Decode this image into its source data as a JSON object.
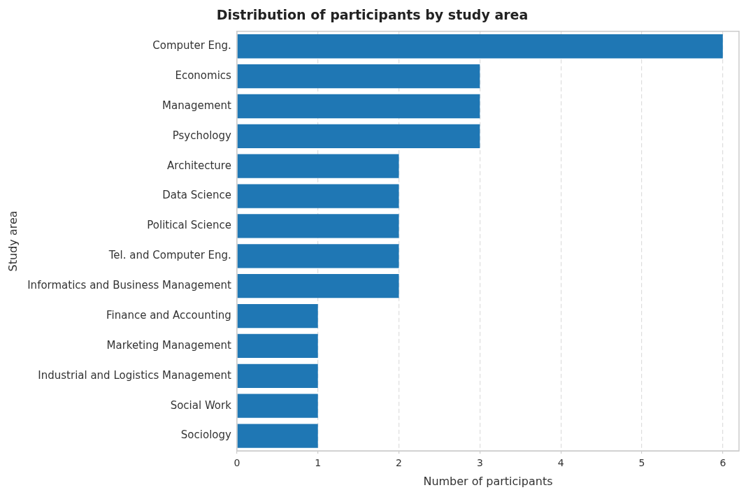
{
  "chart_data": {
    "type": "bar",
    "orientation": "horizontal",
    "title": "Distribution of participants by study area",
    "xlabel": "Number of participants",
    "ylabel": "Study area",
    "categories": [
      "Computer Eng.",
      "Economics",
      "Management",
      "Psychology",
      "Architecture",
      "Data Science",
      "Political Science",
      "Tel. and Computer Eng.",
      "Informatics and Business Management",
      "Finance and Accounting",
      "Marketing Management",
      "Industrial and Logistics Management",
      "Social Work",
      "Sociology"
    ],
    "values": [
      6,
      3,
      3,
      3,
      2,
      2,
      2,
      2,
      2,
      1,
      1,
      1,
      1,
      1
    ],
    "color": "#1f77b4",
    "xlim": [
      0,
      6.2
    ],
    "xticks": [
      0,
      1,
      2,
      3,
      4,
      5,
      6
    ],
    "grid": "x",
    "legend": false
  }
}
